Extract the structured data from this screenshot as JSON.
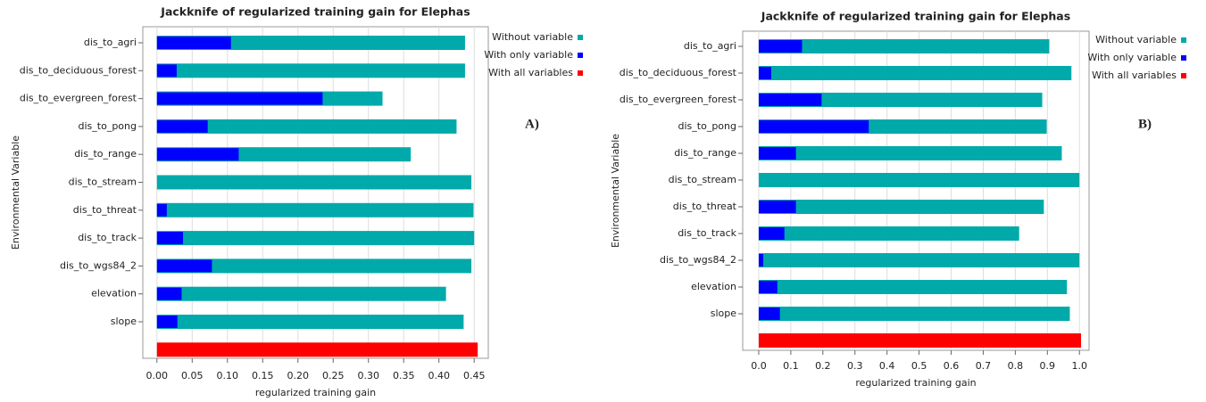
{
  "chart_data": [
    {
      "type": "hbar",
      "title": "Jackknife of regularized training gain for Elephas",
      "x_label": "regularized training gain",
      "y_label": "Environmental Variable",
      "annotation": "A)",
      "categories": [
        "dis_to_agri",
        "dis_to_deciduous_forest",
        "dis_to_evergreen_forest",
        "dis_to_pong",
        "dis_to_range",
        "dis_to_stream",
        "dis_to_threat",
        "dis_to_track",
        "dis_to_wgs84_2",
        "elevation",
        "slope",
        null
      ],
      "series": [
        {
          "name": "Without variable",
          "color": "#00aaaa",
          "values": [
            0.437,
            0.437,
            0.32,
            0.425,
            0.36,
            0.446,
            0.449,
            0.45,
            0.446,
            0.41,
            0.435,
            null
          ]
        },
        {
          "name": "With only variable",
          "color": "#0000ff",
          "values": [
            0.105,
            0.028,
            0.235,
            0.072,
            0.116,
            0,
            0.014,
            0.037,
            0.078,
            0.035,
            0.029,
            null
          ]
        },
        {
          "name": "With all variables",
          "color": "#ff0000",
          "values": [
            null,
            null,
            null,
            null,
            null,
            null,
            null,
            null,
            null,
            null,
            null,
            0.455
          ]
        }
      ],
      "xlim": [
        -0.02,
        0.47
      ],
      "xticks": [
        {
          "value": 0,
          "label": "0.00"
        },
        0.05,
        {
          "value": 0.1,
          "label": "0.10"
        },
        0.15,
        {
          "value": 0.2,
          "label": "0.20"
        },
        0.25,
        {
          "value": 0.3,
          "label": "0.30"
        },
        0.35,
        {
          "value": 0.4,
          "label": "0.40"
        },
        0.45
      ],
      "grid": true,
      "legend": "outside-right"
    },
    {
      "type": "hbar",
      "title": "Jackknife of regularized training gain for Elephas",
      "x_label": "regularized training gain",
      "y_label": "Environmental Variable",
      "annotation": "B)",
      "categories": [
        "dis_to_agri",
        "dis_to_deciduous_forest",
        "dis_to_evergreen_forest",
        "dis_to_pong",
        "dis_to_range",
        "dis_to_stream",
        "dis_to_threat",
        "dis_to_track",
        "dis_to_wgs84_2",
        "elevation",
        "slope",
        null
      ],
      "series": [
        {
          "name": "Without variable",
          "color": "#00aaaa",
          "values": [
            0.906,
            0.975,
            0.884,
            0.898,
            0.945,
            1.0,
            0.889,
            0.812,
            1.0,
            0.961,
            0.97,
            null
          ]
        },
        {
          "name": "With only variable",
          "color": "#0000ff",
          "values": [
            0.135,
            0.039,
            0.196,
            0.343,
            0.116,
            0,
            0.116,
            0.08,
            0.014,
            0.058,
            0.066,
            null
          ]
        },
        {
          "name": "With all variables",
          "color": "#ff0000",
          "values": [
            null,
            null,
            null,
            null,
            null,
            null,
            null,
            null,
            null,
            null,
            null,
            1.005
          ]
        }
      ],
      "xlim": [
        -0.05,
        1.03
      ],
      "xticks": [
        {
          "value": 0,
          "label": "0.0"
        },
        0.1,
        0.2,
        0.3,
        0.4,
        0.5,
        0.6,
        0.7,
        0.8,
        0.9,
        {
          "value": 1,
          "label": "1.0"
        }
      ],
      "grid": true,
      "legend": "outside-right"
    }
  ]
}
